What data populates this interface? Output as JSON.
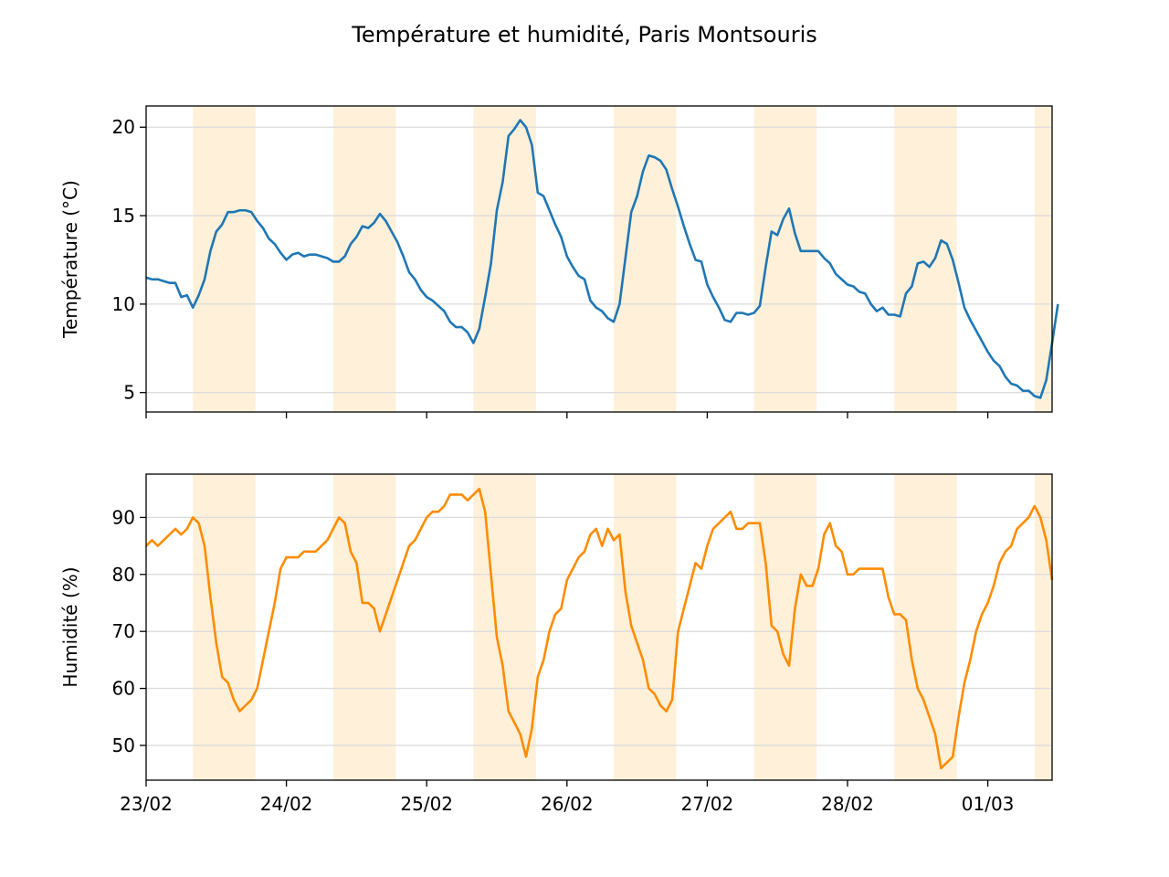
{
  "title": "Température et humidité, Paris Montsouris",
  "chart_data": [
    {
      "type": "line",
      "ylabel": "Température (°C)",
      "xlim": [
        "2025-02-23T00:00",
        "2025-03-01T11:00"
      ],
      "ylim": [
        3.9,
        21.2
      ],
      "yticks": [
        5,
        10,
        15,
        20
      ],
      "grid": "horizontal",
      "color": "#1f77b4",
      "series": [
        {
          "x_start": "2025-02-23T00:00",
          "x_step_hours": 1,
          "values": [
            11.5,
            11.4,
            11.4,
            11.3,
            11.2,
            11.2,
            10.4,
            10.5,
            9.8,
            10.5,
            11.4,
            13.0,
            14.1,
            14.5,
            15.2,
            15.2,
            15.3,
            15.3,
            15.2,
            14.7,
            14.3,
            13.7,
            13.4,
            12.9,
            12.5,
            12.8,
            12.9,
            12.7,
            12.8,
            12.8,
            12.7,
            12.6,
            12.4,
            12.4,
            12.7,
            13.4,
            13.8,
            14.4,
            14.3,
            14.6,
            15.1,
            14.7,
            14.1,
            13.5,
            12.7,
            11.8,
            11.4,
            10.8,
            10.4,
            10.2,
            9.9,
            9.6,
            9.0,
            8.7,
            8.7,
            8.4,
            7.8,
            8.6,
            10.4,
            12.3,
            15.3,
            16.9,
            19.5,
            19.9,
            20.4,
            20.0,
            19.0,
            16.3,
            16.1,
            15.3,
            14.5,
            13.8,
            12.7,
            12.1,
            11.6,
            11.4,
            10.2,
            9.8,
            9.6,
            9.2,
            9.0,
            10.0,
            12.6,
            15.2,
            16.1,
            17.5,
            18.4,
            18.3,
            18.1,
            17.6,
            16.5,
            15.5,
            14.4,
            13.4,
            12.5,
            12.4,
            11.1,
            10.4,
            9.8,
            9.1,
            9.0,
            9.5,
            9.5,
            9.4,
            9.5,
            9.9,
            12.1,
            14.1,
            13.9,
            14.8,
            15.4,
            14.0,
            13.0,
            13.0,
            13.0,
            13.0,
            12.6,
            12.3,
            11.7,
            11.4,
            11.1,
            11.0,
            10.7,
            10.6,
            10.0,
            9.6,
            9.8,
            9.4,
            9.4,
            9.3,
            10.6,
            11.0,
            12.3,
            12.4,
            12.1,
            12.6,
            13.6,
            13.4,
            12.5,
            11.2,
            9.8,
            9.1,
            8.5,
            7.9,
            7.3,
            6.8,
            6.5,
            5.9,
            5.5,
            5.4,
            5.1,
            5.1,
            4.8,
            4.7,
            5.7,
            7.8,
            10.0
          ]
        }
      ]
    },
    {
      "type": "line",
      "ylabel": "Humidité (%)",
      "xlim": [
        "2025-02-23T00:00",
        "2025-03-01T11:00"
      ],
      "ylim": [
        43.9,
        97.6
      ],
      "yticks": [
        50,
        60,
        70,
        80,
        90
      ],
      "grid": "horizontal",
      "color": "#ff8c00",
      "x_tick_labels": [
        "23/02",
        "24/02",
        "25/02",
        "26/02",
        "27/02",
        "28/02",
        "01/03"
      ],
      "series": [
        {
          "x_start": "2025-02-23T00:00",
          "x_step_hours": 1,
          "values": [
            85,
            86,
            85,
            86,
            87,
            88,
            87,
            88,
            90,
            89,
            85,
            76,
            68,
            62,
            61,
            58,
            56,
            57,
            58,
            60,
            65,
            70,
            75,
            81,
            83,
            83,
            83,
            84,
            84,
            84,
            85,
            86,
            88,
            90,
            89,
            84,
            82,
            75,
            75,
            74,
            70,
            73,
            76,
            79,
            82,
            85,
            86,
            88,
            90,
            91,
            91,
            92,
            94,
            94,
            94,
            93,
            94,
            95,
            91,
            80,
            69,
            64,
            56,
            54,
            52,
            48,
            53,
            62,
            65,
            70,
            73,
            74,
            79,
            81,
            83,
            84,
            87,
            88,
            85,
            88,
            86,
            87,
            77,
            71,
            68,
            65,
            60,
            59,
            57,
            56,
            58,
            70,
            74,
            78,
            82,
            81,
            85,
            88,
            89,
            90,
            91,
            88,
            88,
            89,
            89,
            89,
            82,
            71,
            70,
            66,
            64,
            74,
            80,
            78,
            78,
            81,
            87,
            89,
            85,
            84,
            80,
            80,
            81,
            81,
            81,
            81,
            81,
            76,
            73,
            73,
            72,
            65,
            60,
            58,
            55,
            52,
            46,
            47,
            48,
            55,
            61,
            65,
            70,
            73,
            75,
            78,
            82,
            84,
            85,
            88,
            89,
            90,
            92,
            90,
            86,
            79
          ]
        }
      ]
    }
  ]
}
